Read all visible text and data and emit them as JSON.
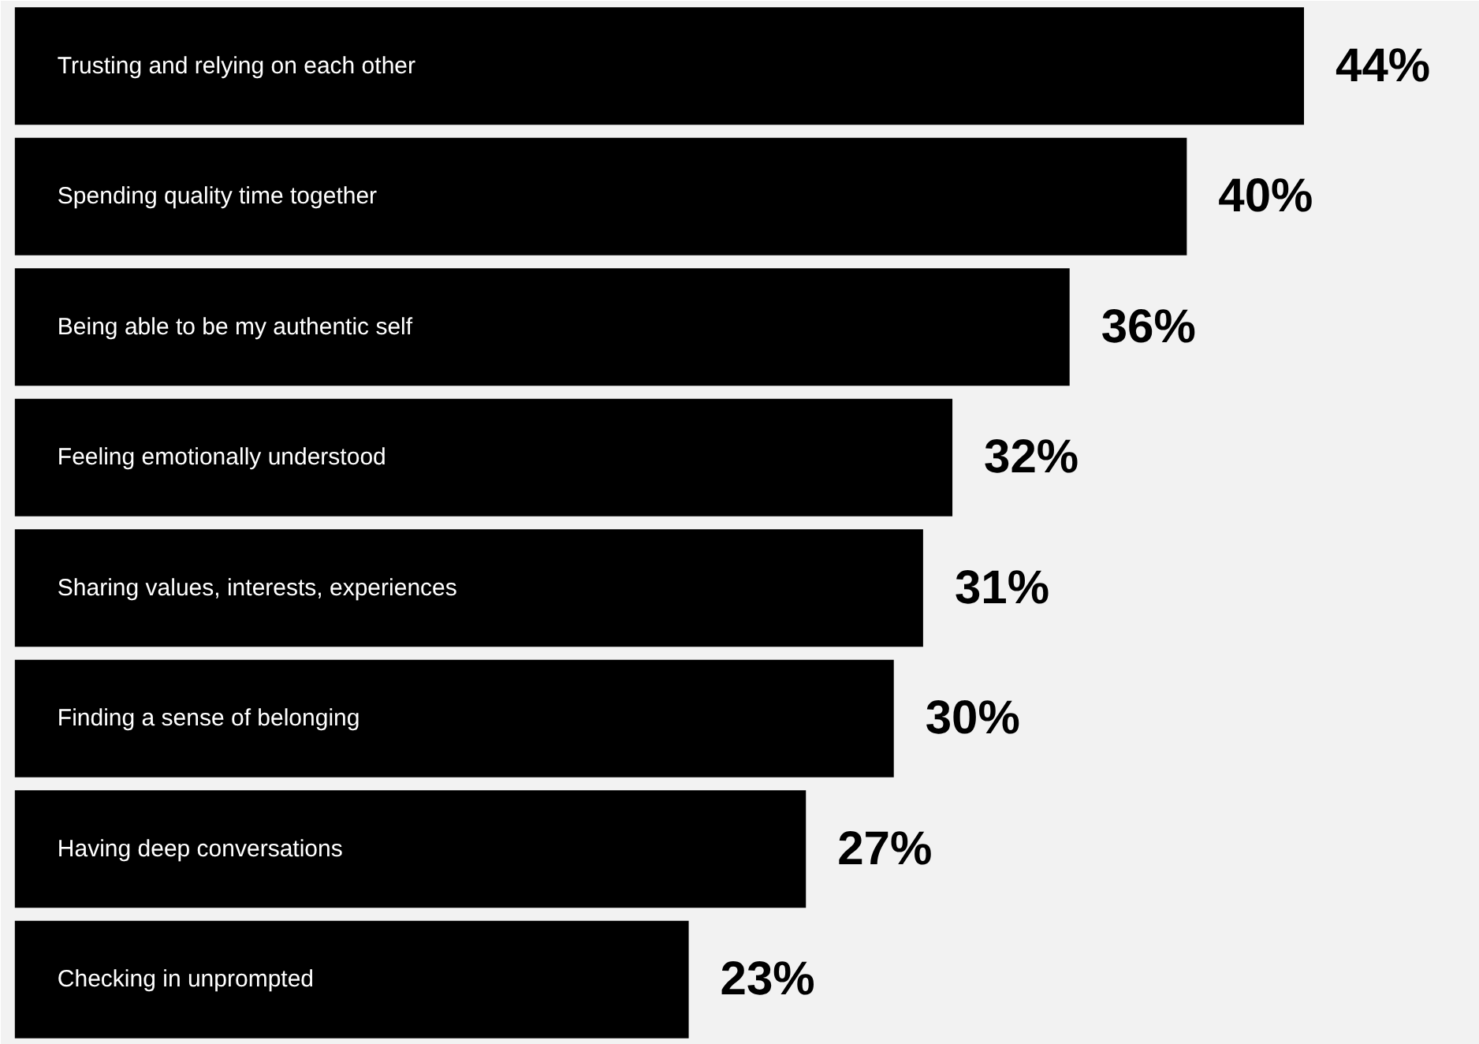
{
  "chart_data": {
    "type": "bar",
    "orientation": "horizontal",
    "categories": [
      "Trusting and relying on each other",
      "Spending quality time together",
      "Being able to be my authentic self",
      "Feeling emotionally understood",
      "Sharing values, interests, experiences",
      "Finding a sense of belonging",
      "Having deep conversations",
      "Checking in unprompted"
    ],
    "values": [
      44,
      40,
      36,
      32,
      31,
      30,
      27,
      23
    ],
    "value_labels": [
      "44%",
      "40%",
      "36%",
      "32%",
      "31%",
      "30%",
      "27%",
      "23%"
    ],
    "color": "#000000",
    "xlim": [
      0,
      50
    ],
    "tick_labels": false,
    "grid": false
  }
}
